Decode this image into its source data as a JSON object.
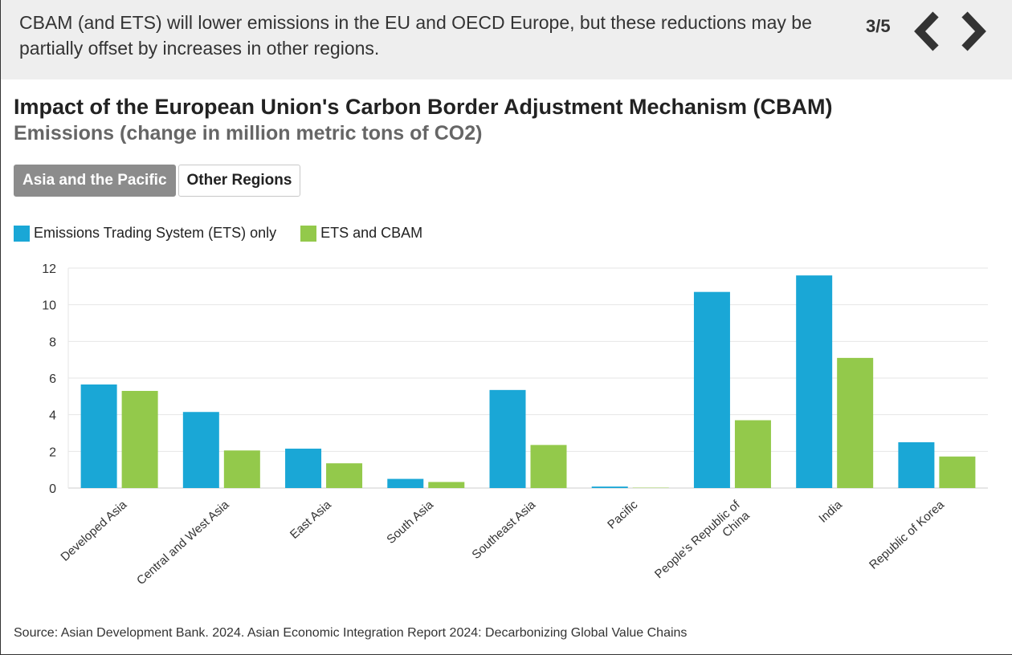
{
  "header": {
    "text": "CBAM (and ETS) will lower emissions in the EU and OECD Europe, but these reductions may be partially offset by increases in other regions.",
    "pager": "3/5",
    "prev_icon": "chevron-left-icon",
    "next_icon": "chevron-right-icon"
  },
  "title": "Impact of the European Union's Carbon Border Adjustment Mechanism (CBAM)",
  "subtitle": "Emissions (change in million metric tons of CO2)",
  "tabs": [
    {
      "label": "Asia and the Pacific",
      "active": true
    },
    {
      "label": "Other Regions",
      "active": false
    }
  ],
  "source": "Source: Asian Development Bank. 2024. Asian Economic Integration Report 2024: Decarbonizing Global Value Chains",
  "colors": {
    "ets": "#1aa7d6",
    "cbam": "#93c94b",
    "grid": "#e6e6e6",
    "axis": "#cccccc"
  },
  "chart_data": {
    "type": "bar",
    "categories": [
      "Developed Asia",
      "Central and West Asia",
      "East Asia",
      "South Asia",
      "Southeast Asia",
      "Pacific",
      "People's Republic of China",
      "India",
      "Republic of Korea"
    ],
    "series": [
      {
        "name": "Emissions Trading System (ETS) only",
        "values": [
          5.65,
          4.15,
          2.15,
          0.5,
          5.35,
          0.08,
          10.7,
          11.6,
          2.5
        ]
      },
      {
        "name": "ETS and CBAM",
        "values": [
          5.3,
          2.05,
          1.35,
          0.33,
          2.35,
          0.02,
          3.7,
          7.1,
          1.72
        ]
      }
    ],
    "yticks": [
      "0",
      "2",
      "4",
      "6",
      "8",
      "10",
      "12"
    ],
    "ylim": [
      0,
      12
    ],
    "grid": true,
    "legend": "top-left"
  }
}
